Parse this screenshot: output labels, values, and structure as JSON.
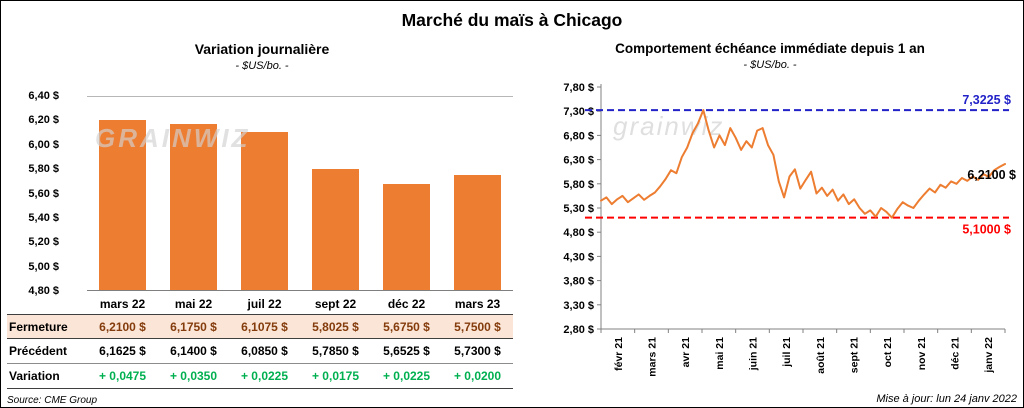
{
  "page_title": "Marché du maïs à Chicago",
  "left_chart": {
    "title": "Variation journalière",
    "subtitle": "- $US/bo. -",
    "watermark": "GRAINWIZ",
    "source": "Source: CME Group"
  },
  "right_chart": {
    "title": "Comportement échéance immédiate depuis 1 an",
    "subtitle": "- $US/bo. -",
    "watermark": "grainwiz",
    "updated": "Mise à jour: lun 24 janv 2022"
  },
  "table": {
    "rows": [
      {
        "label": "Fermeture",
        "style": "fermeture",
        "values": [
          "6,2100  $",
          "6,1750  $",
          "6,1075  $",
          "5,8025  $",
          "5,6750  $",
          "5,7500  $"
        ]
      },
      {
        "label": "Précédent",
        "style": "precedent",
        "values": [
          "6,1625  $",
          "6,1400  $",
          "6,0850  $",
          "5,7850  $",
          "5,6525  $",
          "5,7300  $"
        ]
      },
      {
        "label": "Variation",
        "style": "variation",
        "values": [
          "+ 0,0475",
          "+ 0,0350",
          "+ 0,0225",
          "+ 0,0175",
          "+ 0,0225",
          "+ 0,0200"
        ]
      }
    ]
  },
  "chart_data": [
    {
      "type": "bar",
      "title": "Variation journalière",
      "subtitle": "- $US/bo. -",
      "categories": [
        "mars 22",
        "mai 22",
        "juil 22",
        "sept 22",
        "déc 22",
        "mars 23"
      ],
      "values": [
        6.21,
        6.175,
        6.1075,
        5.8025,
        5.675,
        5.75
      ],
      "ylim": [
        4.8,
        6.4
      ],
      "yticks": [
        {
          "v": 6.4,
          "label": "6,40 $"
        },
        {
          "v": 6.2,
          "label": "6,20 $"
        },
        {
          "v": 6.0,
          "label": "6,00 $"
        },
        {
          "v": 5.8,
          "label": "5,80 $"
        },
        {
          "v": 5.6,
          "label": "5,60 $"
        },
        {
          "v": 5.4,
          "label": "5,40 $"
        },
        {
          "v": 5.2,
          "label": "5,20 $"
        },
        {
          "v": 5.0,
          "label": "5,00 $"
        },
        {
          "v": 4.8,
          "label": "4,80 $"
        }
      ],
      "bar_color": "#ED7D31",
      "grid": false,
      "legend": false
    },
    {
      "type": "line",
      "title": "Comportement échéance immédiate depuis 1 an",
      "subtitle": "- $US/bo. -",
      "x_labels": [
        "févr 21",
        "mars 21",
        "avr 21",
        "mai 21",
        "juin 21",
        "juil 21",
        "août 21",
        "sept 21",
        "oct 21",
        "nov 21",
        "déc 21",
        "janv 22"
      ],
      "ylim": [
        2.8,
        7.8
      ],
      "yticks": [
        {
          "v": 7.8,
          "label": "7,80 $"
        },
        {
          "v": 7.3,
          "label": "7,30 $"
        },
        {
          "v": 6.8,
          "label": "6,80 $"
        },
        {
          "v": 6.3,
          "label": "6,30 $"
        },
        {
          "v": 5.8,
          "label": "5,80 $"
        },
        {
          "v": 5.3,
          "label": "5,30 $"
        },
        {
          "v": 4.8,
          "label": "4,80 $"
        },
        {
          "v": 4.3,
          "label": "4,30 $"
        },
        {
          "v": 3.8,
          "label": "3,80 $"
        },
        {
          "v": 3.3,
          "label": "3,30 $"
        },
        {
          "v": 2.8,
          "label": "2,80 $"
        }
      ],
      "values": [
        5.45,
        5.52,
        5.38,
        5.48,
        5.55,
        5.42,
        5.5,
        5.58,
        5.47,
        5.55,
        5.62,
        5.75,
        5.9,
        6.08,
        6.02,
        6.35,
        6.55,
        6.85,
        7.05,
        7.3225,
        6.9,
        6.55,
        6.8,
        6.6,
        6.95,
        6.75,
        6.5,
        6.68,
        6.55,
        6.9,
        6.95,
        6.6,
        6.4,
        5.85,
        5.52,
        5.95,
        6.1,
        5.7,
        5.88,
        6.05,
        5.6,
        5.72,
        5.55,
        5.68,
        5.45,
        5.58,
        5.38,
        5.48,
        5.3,
        5.18,
        5.25,
        5.12,
        5.3,
        5.22,
        5.1,
        5.28,
        5.42,
        5.35,
        5.3,
        5.45,
        5.58,
        5.7,
        5.62,
        5.78,
        5.72,
        5.85,
        5.8,
        5.92,
        5.86,
        5.95,
        5.88,
        6.0,
        5.94,
        6.08,
        6.15,
        6.21
      ],
      "line_color": "#ED7D31",
      "max_line": {
        "value": 7.3225,
        "label": "7,3225 $",
        "color": "#2222C8"
      },
      "min_line": {
        "value": 5.1,
        "label": "5,1000 $",
        "color": "#FF0000"
      },
      "last_point": {
        "value": 6.21,
        "label": "6,2100 $",
        "color": "#000000"
      },
      "grid": false,
      "legend": false
    }
  ]
}
